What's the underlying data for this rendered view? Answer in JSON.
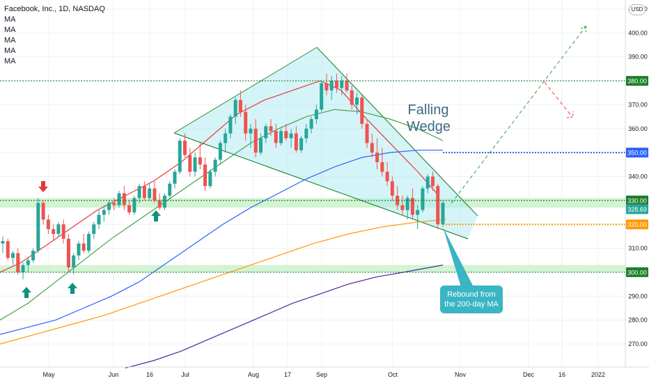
{
  "header": {
    "symbol_title": "Facebook, Inc., 1D, NASDAQ",
    "indicators": [
      "MA",
      "MA",
      "MA",
      "MA",
      "MA"
    ],
    "currency": "USD"
  },
  "annotations": {
    "pattern_label": [
      "Falling",
      "Wedge"
    ],
    "callout": [
      "Rebound from",
      "the 200-day MA"
    ]
  },
  "colors": {
    "bull": "#26a69a",
    "bear": "#ef5350",
    "ma20": "#e53935",
    "ma50": "#43a047",
    "ma100": "#2962ff",
    "ma200": "#ff9800",
    "ma300": "#4527a0",
    "wedge_fill": "#b2ebf2",
    "zone_fill": "#c8f0c8",
    "callout_bg": "#3ab5c4"
  },
  "chart_data": {
    "type": "candlestick",
    "y_axis": {
      "range": [
        260,
        410
      ],
      "ticks": [
        270,
        280,
        290,
        300,
        310,
        320,
        330,
        340,
        350,
        360,
        370,
        380,
        390,
        400,
        410
      ]
    },
    "x_axis": {
      "tick_labels": [
        "May",
        "Jun",
        "16",
        "Jul",
        "Aug",
        "17",
        "Sep",
        "Oct",
        "Nov",
        "Dec",
        "16",
        "2022"
      ]
    },
    "levels": [
      {
        "value": 380,
        "label": "380.00",
        "color": "#1b7f2a",
        "style": "dotted"
      },
      {
        "value": 350,
        "label": "350.00",
        "color": "#2962ff",
        "style": "dotted"
      },
      {
        "value": 330,
        "label": "330.00",
        "color": "#1b7f2a",
        "style": "dotted"
      },
      {
        "value": 320,
        "label": "320.00",
        "color": "#ff9800",
        "style": "dotted"
      },
      {
        "value": 300,
        "label": "300.00",
        "color": "#1b7f2a",
        "style": "dotted"
      }
    ],
    "last_price": {
      "value": 328.69,
      "label": "328.69",
      "color": "#26a69a"
    },
    "support_zones": [
      [
        327,
        331
      ],
      [
        300,
        303
      ]
    ],
    "candles_ohlc": [
      [
        312,
        315,
        308,
        313
      ],
      [
        313,
        314,
        305,
        306
      ],
      [
        306,
        309,
        303,
        308
      ],
      [
        308,
        310,
        299,
        300
      ],
      [
        300,
        304,
        297,
        303
      ],
      [
        303,
        306,
        300,
        305
      ],
      [
        305,
        310,
        304,
        309
      ],
      [
        309,
        331,
        308,
        329
      ],
      [
        329,
        330,
        320,
        322
      ],
      [
        322,
        324,
        316,
        318
      ],
      [
        318,
        320,
        313,
        316
      ],
      [
        316,
        321,
        315,
        320
      ],
      [
        320,
        322,
        312,
        314
      ],
      [
        314,
        316,
        300,
        302
      ],
      [
        302,
        308,
        299,
        307
      ],
      [
        307,
        313,
        305,
        312
      ],
      [
        312,
        316,
        308,
        309
      ],
      [
        309,
        317,
        308,
        316
      ],
      [
        316,
        321,
        314,
        320
      ],
      [
        320,
        326,
        318,
        324
      ],
      [
        324,
        328,
        321,
        326
      ],
      [
        326,
        330,
        324,
        329
      ],
      [
        329,
        331,
        326,
        328
      ],
      [
        328,
        334,
        327,
        333
      ],
      [
        333,
        336,
        326,
        328
      ],
      [
        328,
        330,
        324,
        325
      ],
      [
        325,
        332,
        324,
        331
      ],
      [
        331,
        337,
        329,
        336
      ],
      [
        336,
        338,
        330,
        331
      ],
      [
        331,
        337,
        330,
        335
      ],
      [
        335,
        338,
        329,
        330
      ],
      [
        330,
        333,
        326,
        327
      ],
      [
        327,
        333,
        326,
        332
      ],
      [
        332,
        338,
        331,
        337
      ],
      [
        337,
        343,
        335,
        342
      ],
      [
        342,
        356,
        341,
        355
      ],
      [
        355,
        358,
        348,
        349
      ],
      [
        349,
        352,
        340,
        342
      ],
      [
        342,
        350,
        340,
        348
      ],
      [
        348,
        354,
        343,
        345
      ],
      [
        345,
        348,
        334,
        336
      ],
      [
        336,
        343,
        335,
        342
      ],
      [
        342,
        348,
        340,
        347
      ],
      [
        347,
        355,
        345,
        354
      ],
      [
        354,
        360,
        350,
        358
      ],
      [
        358,
        366,
        356,
        365
      ],
      [
        365,
        373,
        362,
        372
      ],
      [
        372,
        376,
        365,
        367
      ],
      [
        367,
        370,
        355,
        358
      ],
      [
        358,
        362,
        352,
        360
      ],
      [
        360,
        364,
        348,
        350
      ],
      [
        350,
        358,
        349,
        356
      ],
      [
        356,
        362,
        354,
        361
      ],
      [
        361,
        364,
        357,
        359
      ],
      [
        359,
        362,
        352,
        354
      ],
      [
        354,
        360,
        353,
        359
      ],
      [
        359,
        362,
        355,
        356
      ],
      [
        356,
        360,
        352,
        358
      ],
      [
        358,
        361,
        350,
        351
      ],
      [
        351,
        357,
        350,
        356
      ],
      [
        356,
        362,
        354,
        360
      ],
      [
        360,
        365,
        358,
        364
      ],
      [
        364,
        370,
        362,
        368
      ],
      [
        368,
        380,
        367,
        379
      ],
      [
        379,
        383,
        374,
        376
      ],
      [
        376,
        382,
        372,
        380
      ],
      [
        380,
        383,
        375,
        377
      ],
      [
        377,
        382,
        374,
        380
      ],
      [
        380,
        383,
        375,
        376
      ],
      [
        376,
        378,
        368,
        370
      ],
      [
        370,
        375,
        366,
        373
      ],
      [
        373,
        374,
        360,
        362
      ],
      [
        362,
        364,
        352,
        354
      ],
      [
        354,
        358,
        348,
        350
      ],
      [
        350,
        356,
        343,
        346
      ],
      [
        346,
        352,
        340,
        342
      ],
      [
        342,
        346,
        336,
        338
      ],
      [
        338,
        340,
        330,
        332
      ],
      [
        332,
        336,
        326,
        328
      ],
      [
        328,
        332,
        324,
        326
      ],
      [
        326,
        332,
        322,
        331
      ],
      [
        331,
        335,
        322,
        324
      ],
      [
        324,
        328,
        318,
        326
      ],
      [
        326,
        336,
        325,
        335
      ],
      [
        335,
        341,
        333,
        340
      ],
      [
        340,
        342,
        334,
        336
      ],
      [
        336,
        337,
        318,
        320
      ],
      [
        320,
        330,
        319,
        329
      ]
    ],
    "moving_averages": [
      {
        "name": "MA",
        "color": "#e53935",
        "points": [
          [
            0,
            300
          ],
          [
            30,
            304
          ],
          [
            60,
            310
          ],
          [
            100,
            318
          ],
          [
            140,
            326
          ],
          [
            180,
            332
          ],
          [
            220,
            338
          ],
          [
            260,
            346
          ],
          [
            300,
            356
          ],
          [
            340,
            366
          ],
          [
            380,
            372
          ],
          [
            420,
            376
          ],
          [
            460,
            380
          ],
          [
            490,
            376
          ],
          [
            520,
            366
          ],
          [
            560,
            354
          ],
          [
            600,
            342
          ],
          [
            630,
            332
          ]
        ]
      },
      {
        "name": "MA",
        "color": "#43a047",
        "points": [
          [
            0,
            280
          ],
          [
            40,
            287
          ],
          [
            80,
            296
          ],
          [
            120,
            305
          ],
          [
            160,
            314
          ],
          [
            200,
            322
          ],
          [
            240,
            330
          ],
          [
            280,
            338
          ],
          [
            320,
            346
          ],
          [
            360,
            354
          ],
          [
            400,
            360
          ],
          [
            440,
            365
          ],
          [
            480,
            368
          ],
          [
            520,
            367
          ],
          [
            560,
            364
          ],
          [
            600,
            360
          ],
          [
            636,
            355
          ]
        ]
      },
      {
        "name": "MA",
        "color": "#2962ff",
        "points": [
          [
            0,
            274
          ],
          [
            40,
            277
          ],
          [
            80,
            280
          ],
          [
            120,
            285
          ],
          [
            160,
            290
          ],
          [
            200,
            296
          ],
          [
            240,
            304
          ],
          [
            280,
            312
          ],
          [
            320,
            320
          ],
          [
            360,
            327
          ],
          [
            400,
            333
          ],
          [
            440,
            339
          ],
          [
            480,
            344
          ],
          [
            520,
            348
          ],
          [
            560,
            350
          ],
          [
            600,
            351
          ],
          [
            636,
            351
          ]
        ]
      },
      {
        "name": "MA",
        "color": "#ff9800",
        "points": [
          [
            0,
            270
          ],
          [
            50,
            274
          ],
          [
            100,
            278
          ],
          [
            150,
            282
          ],
          [
            200,
            287
          ],
          [
            250,
            292
          ],
          [
            300,
            297
          ],
          [
            350,
            302
          ],
          [
            400,
            307
          ],
          [
            450,
            312
          ],
          [
            500,
            316
          ],
          [
            550,
            319
          ],
          [
            600,
            321
          ],
          [
            640,
            322
          ]
        ]
      },
      {
        "name": "MA",
        "color": "#4527a0",
        "points": [
          [
            180,
            260
          ],
          [
            220,
            263
          ],
          [
            260,
            267
          ],
          [
            300,
            272
          ],
          [
            340,
            277
          ],
          [
            380,
            282
          ],
          [
            420,
            287
          ],
          [
            460,
            291
          ],
          [
            500,
            295
          ],
          [
            540,
            298
          ],
          [
            580,
            300
          ],
          [
            636,
            303
          ]
        ]
      }
    ]
  }
}
